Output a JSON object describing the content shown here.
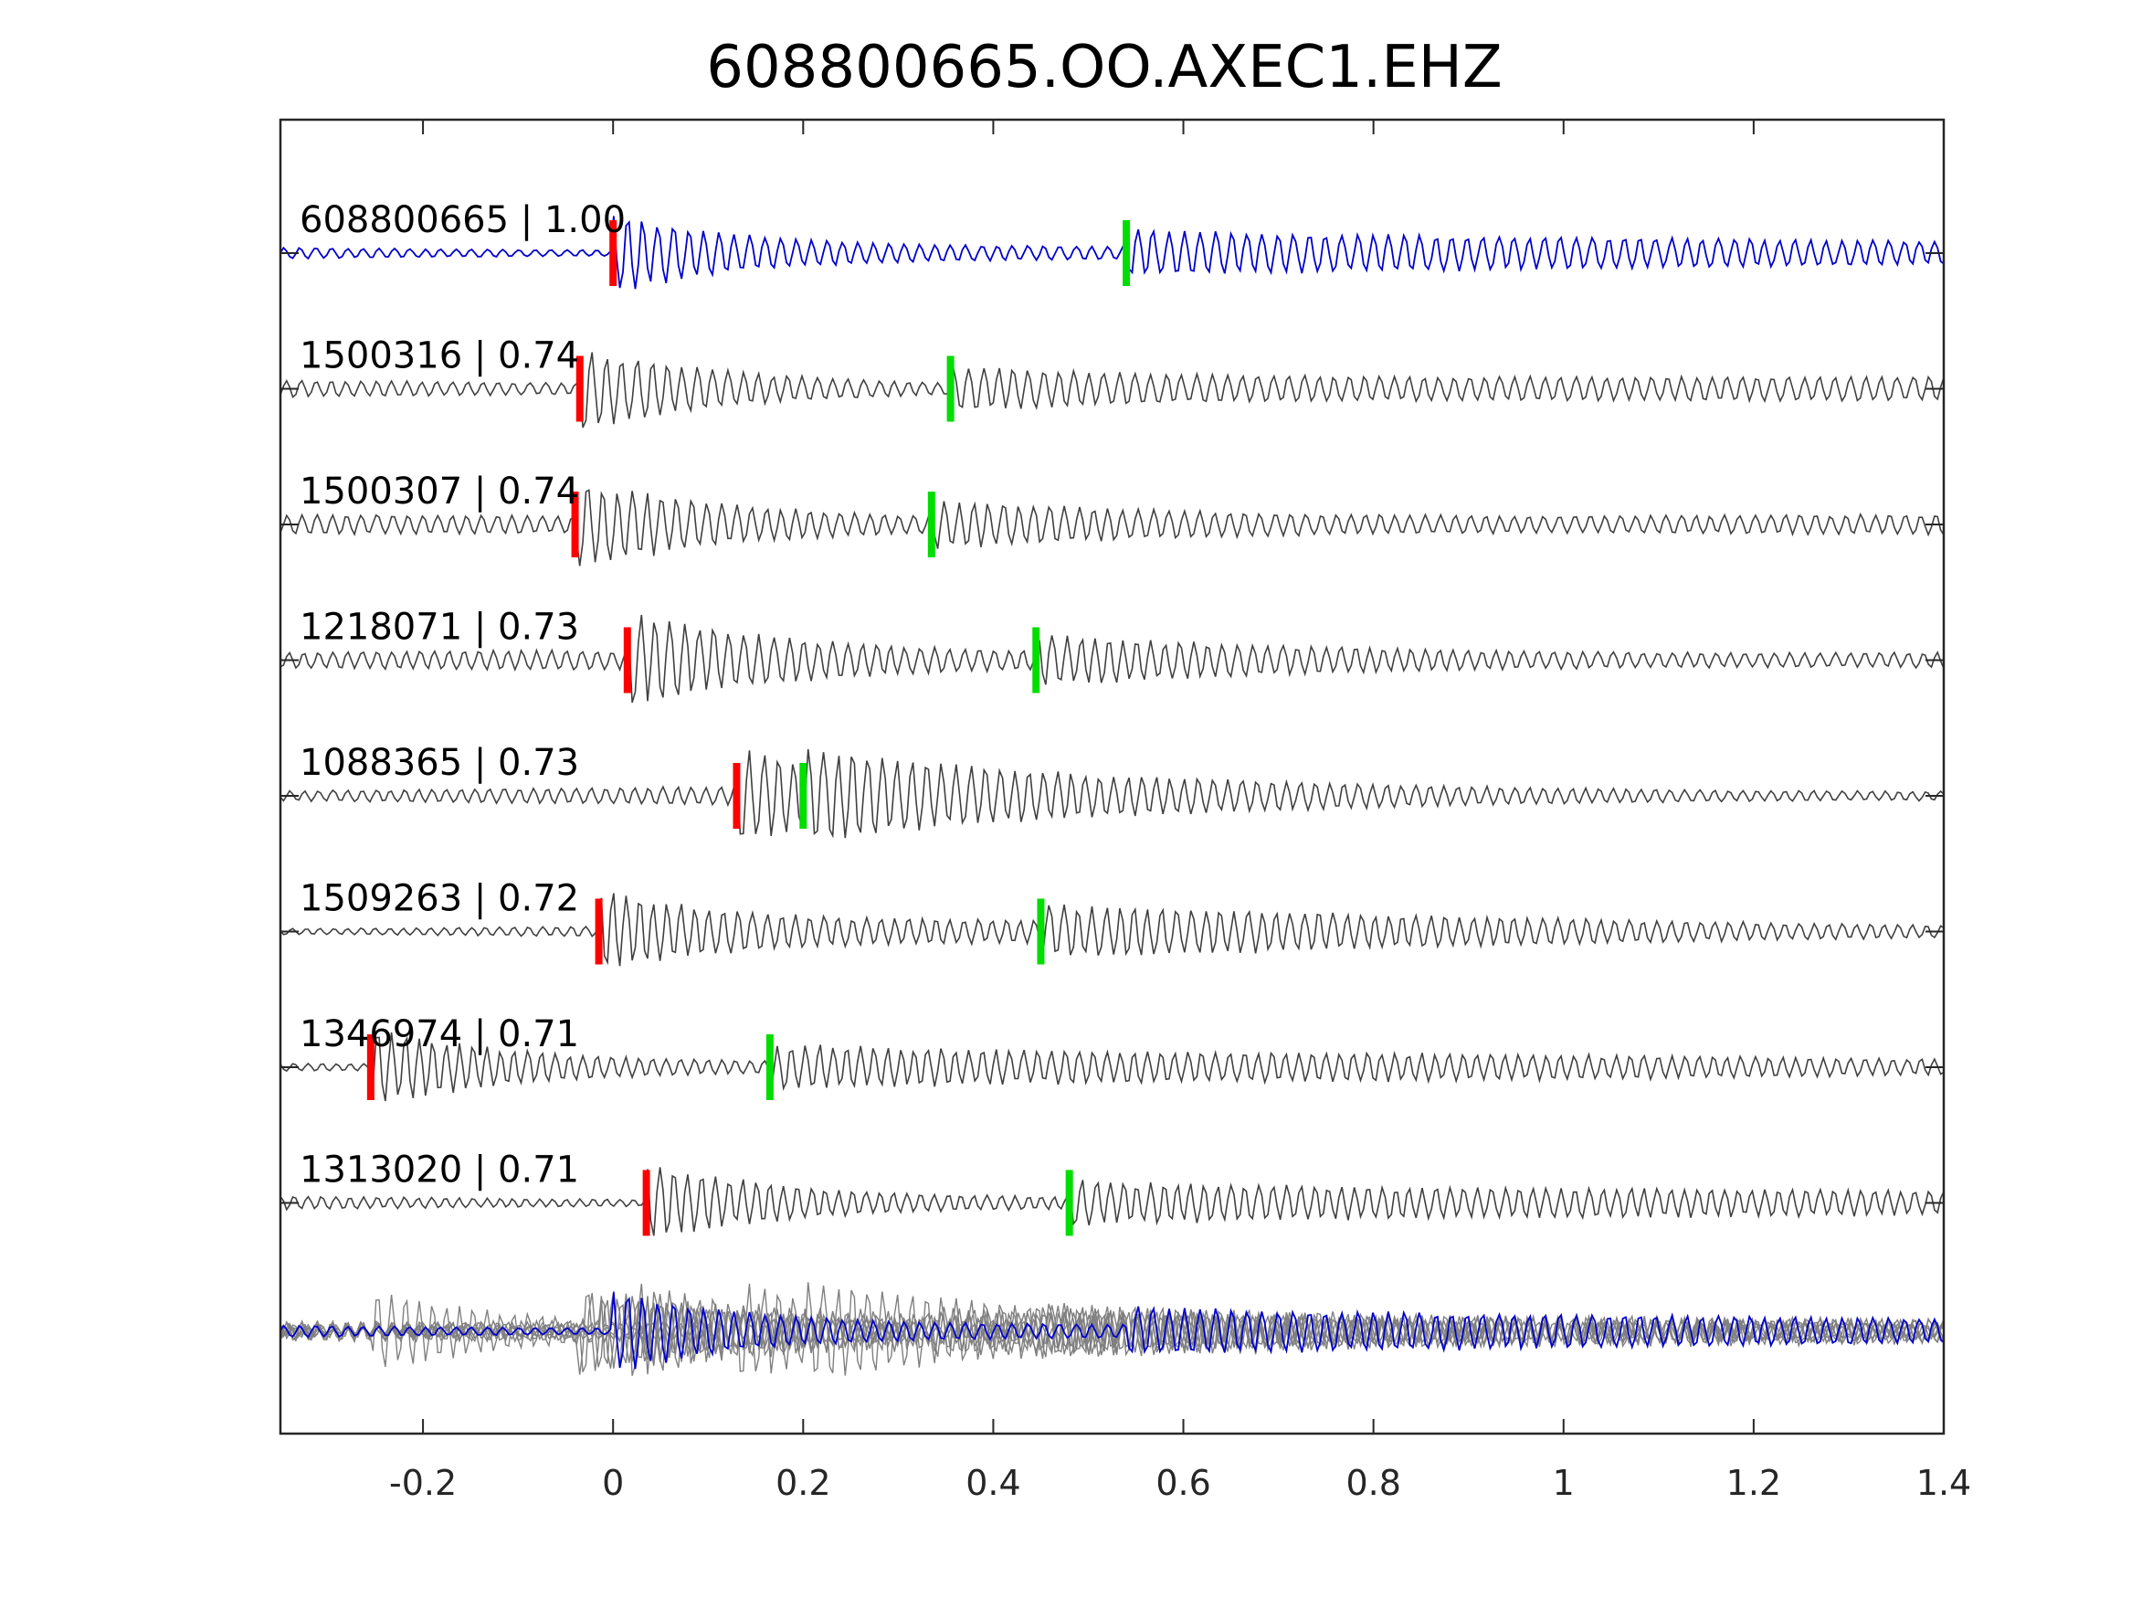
{
  "chart_data": {
    "type": "line",
    "title": "608800665.OO.AXEC1.EHZ",
    "xlabel": "",
    "ylabel": "",
    "xlim": [
      -0.35,
      1.4
    ],
    "x_ticks": [
      -0.2,
      0,
      0.2,
      0.4,
      0.6,
      0.8,
      1,
      1.2,
      1.4
    ],
    "x_tick_labels": [
      "-0.2",
      "0",
      "0.2",
      "0.4",
      "0.6",
      "0.8",
      "1",
      "1.2",
      "1.4"
    ],
    "grid": false,
    "colors": {
      "reference": "#0000cc",
      "template": "#404040",
      "stack": "#808080",
      "p_pick": "#ff0000",
      "s_pick": "#00dd00"
    },
    "series": [
      {
        "id": "608800665",
        "label": "608800665 | 1.00",
        "cc": 1.0,
        "p_pick": 0.0,
        "s_pick": 0.54,
        "reference": true
      },
      {
        "id": "1500316",
        "label": "1500316 | 0.74",
        "cc": 0.74,
        "p_pick": -0.035,
        "s_pick": 0.355
      },
      {
        "id": "1500307",
        "label": "1500307 | 0.74",
        "cc": 0.74,
        "p_pick": -0.04,
        "s_pick": 0.335
      },
      {
        "id": "1218071",
        "label": "1218071 | 0.73",
        "cc": 0.73,
        "p_pick": 0.015,
        "s_pick": 0.445
      },
      {
        "id": "1088365",
        "label": "1088365 | 0.73",
        "cc": 0.73,
        "p_pick": 0.13,
        "s_pick": 0.2
      },
      {
        "id": "1509263",
        "label": "1509263 | 0.72",
        "cc": 0.72,
        "p_pick": -0.015,
        "s_pick": 0.45
      },
      {
        "id": "1346974",
        "label": "1346974 | 0.71",
        "cc": 0.71,
        "p_pick": -0.255,
        "s_pick": 0.165
      },
      {
        "id": "1313020",
        "label": "1313020 | 0.71",
        "cc": 0.71,
        "p_pick": 0.035,
        "s_pick": 0.48
      }
    ]
  }
}
